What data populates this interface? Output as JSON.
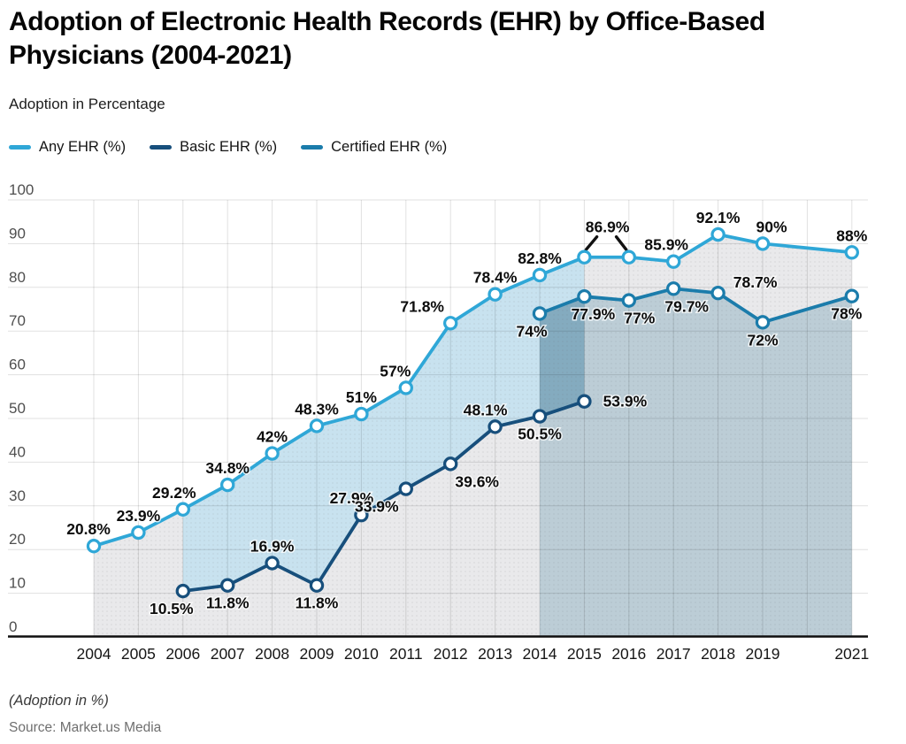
{
  "header": {
    "title": "Adoption of Electronic Health Records (EHR) by Office-Based Physicians (2004-2021)",
    "subtitle": "Adoption in Percentage"
  },
  "legend": {
    "items": [
      {
        "label": "Any EHR (%)",
        "color": "#2fa7d7"
      },
      {
        "label": "Basic EHR (%)",
        "color": "#174f7c"
      },
      {
        "label": "Certified EHR (%)",
        "color": "#1b7cab"
      }
    ]
  },
  "footer": {
    "note": "(Adoption in %)",
    "source": "Source: Market.us Media"
  },
  "chart_data": {
    "type": "line",
    "title": "Adoption of Electronic Health Records (EHR) by Office-Based Physicians (2004-2021)",
    "ylabel": "Adoption in Percentage",
    "ylim": [
      0,
      100
    ],
    "y_ticks": [
      0,
      10,
      20,
      30,
      40,
      50,
      60,
      70,
      80,
      90,
      100
    ],
    "x_ticks": [
      {
        "year": 2004,
        "label": "2004"
      },
      {
        "year": 2005,
        "label": "2005"
      },
      {
        "year": 2006,
        "label": "2006"
      },
      {
        "year": 2007,
        "label": "2007"
      },
      {
        "year": 2008,
        "label": "2008"
      },
      {
        "year": 2009,
        "label": "2009"
      },
      {
        "year": 2010,
        "label": "2010"
      },
      {
        "year": 2011,
        "label": "2011"
      },
      {
        "year": 2012,
        "label": "2012"
      },
      {
        "year": 2013,
        "label": "2013"
      },
      {
        "year": 2014,
        "label": "2014"
      },
      {
        "year": 2015,
        "label": "2015"
      },
      {
        "year": 2016,
        "label": "2016"
      },
      {
        "year": 2017,
        "label": "2017"
      },
      {
        "year": 2018,
        "label": "2018"
      },
      {
        "year": 2019,
        "label": "2019"
      },
      {
        "year": 2021,
        "label": "2021"
      }
    ],
    "x_grid_years": [
      2004,
      2005,
      2006,
      2007,
      2008,
      2009,
      2010,
      2011,
      2012,
      2013,
      2014,
      2015,
      2016,
      2017,
      2018,
      2019,
      2020,
      2021
    ],
    "grid": true,
    "legend_position": "top",
    "series": [
      {
        "name": "Any EHR (%)",
        "color": "#2fa7d7",
        "points": [
          {
            "x": 2004,
            "y": 20.8,
            "label": "20.8%",
            "pos": "above",
            "dx": -6
          },
          {
            "x": 2005,
            "y": 23.9,
            "label": "23.9%",
            "pos": "above"
          },
          {
            "x": 2006,
            "y": 29.2,
            "label": "29.2%",
            "pos": "above",
            "dx": -10
          },
          {
            "x": 2007,
            "y": 34.8,
            "label": "34.8%",
            "pos": "above"
          },
          {
            "x": 2008,
            "y": 42,
            "label": "42%",
            "pos": "above"
          },
          {
            "x": 2009,
            "y": 48.3,
            "label": "48.3%",
            "pos": "above"
          },
          {
            "x": 2010,
            "y": 51,
            "label": "51%",
            "pos": "above"
          },
          {
            "x": 2011,
            "y": 57,
            "label": "57%",
            "pos": "above",
            "dx": -12
          },
          {
            "x": 2012,
            "y": 71.8,
            "label": "71.8%",
            "pos": "above",
            "dx": -32
          },
          {
            "x": 2013,
            "y": 78.4,
            "label": "78.4%",
            "pos": "above"
          },
          {
            "x": 2014,
            "y": 82.8,
            "label": "82.8%",
            "pos": "above"
          },
          {
            "x": 2015,
            "y": 86.9,
            "label": "86.9%",
            "pos": "callout"
          },
          {
            "x": 2016,
            "y": 86.9,
            "label": "",
            "pos": "none"
          },
          {
            "x": 2017,
            "y": 85.9,
            "label": "85.9%",
            "pos": "above",
            "dx": -8
          },
          {
            "x": 2018,
            "y": 92.1,
            "label": "92.1%",
            "pos": "above"
          },
          {
            "x": 2019,
            "y": 90,
            "label": "90%",
            "pos": "above",
            "dx": 10
          },
          {
            "x": 2021,
            "y": 88,
            "label": "88%",
            "pos": "above"
          }
        ]
      },
      {
        "name": "Basic EHR (%)",
        "color": "#174f7c",
        "points": [
          {
            "x": 2006,
            "y": 10.5,
            "label": "10.5%",
            "pos": "below",
            "dx": -13
          },
          {
            "x": 2007,
            "y": 11.8,
            "label": "11.8%",
            "pos": "below"
          },
          {
            "x": 2008,
            "y": 16.9,
            "label": "16.9%",
            "pos": "above"
          },
          {
            "x": 2009,
            "y": 11.8,
            "label": "11.8%",
            "pos": "below"
          },
          {
            "x": 2010,
            "y": 27.9,
            "label": "27.9%",
            "pos": "above",
            "dx": -11
          },
          {
            "x": 2011,
            "y": 33.9,
            "label": "33.9%",
            "pos": "below",
            "dx": -33
          },
          {
            "x": 2012,
            "y": 39.6,
            "label": "39.6%",
            "pos": "below",
            "dx": 30
          },
          {
            "x": 2013,
            "y": 48.1,
            "label": "48.1%",
            "pos": "above",
            "dx": -11
          },
          {
            "x": 2014,
            "y": 50.5,
            "label": "50.5%",
            "pos": "below"
          },
          {
            "x": 2015,
            "y": 53.9,
            "label": "53.9%",
            "pos": "right"
          }
        ]
      },
      {
        "name": "Certified EHR (%)",
        "color": "#1b7cab",
        "points": [
          {
            "x": 2014,
            "y": 74,
            "label": "74%",
            "pos": "below",
            "dx": -9
          },
          {
            "x": 2015,
            "y": 77.9,
            "label": "77.9%",
            "pos": "below",
            "dx": 10
          },
          {
            "x": 2016,
            "y": 77,
            "label": "77%",
            "pos": "below",
            "dx": 12
          },
          {
            "x": 2017,
            "y": 79.7,
            "label": "79.7%",
            "pos": "below",
            "dx": 15
          },
          {
            "x": 2018,
            "y": 78.7,
            "label": "78.7%",
            "pos": "above-right"
          },
          {
            "x": 2019,
            "y": 72,
            "label": "72%",
            "pos": "below"
          },
          {
            "x": 2021,
            "y": 78,
            "label": "78%",
            "pos": "below",
            "dx": -6
          }
        ]
      }
    ],
    "area_colors": {
      "under_any": "#e9e9eb",
      "any_basic_band": "#c8e2ef",
      "under_certified": "#bccdd6",
      "certified_basic_overlap": "#84abbf"
    },
    "axis_color": "#0f0f0f",
    "grid_color": "rgba(0,0,0,0.12)",
    "tick_label_color": "#4f4f4f",
    "x_label_color": "#161616",
    "data_label_color": "#0d0d0d"
  }
}
